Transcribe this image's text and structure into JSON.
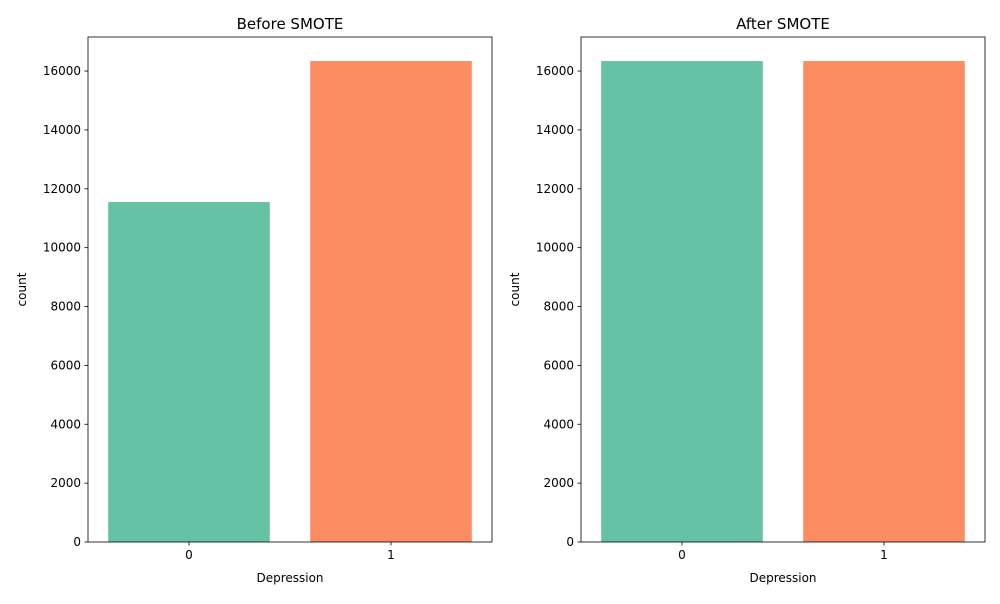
{
  "chart_data": [
    {
      "type": "bar",
      "title": "Before SMOTE",
      "xlabel": "Depression",
      "ylabel": "count",
      "categories": [
        "0",
        "1"
      ],
      "values": [
        11550,
        16340
      ],
      "colors": [
        "#66c2a5",
        "#fc8d62"
      ],
      "ylim": [
        0,
        17157
      ],
      "yticks": [
        0,
        2000,
        4000,
        6000,
        8000,
        10000,
        12000,
        14000,
        16000
      ],
      "grid": false,
      "legend": "none"
    },
    {
      "type": "bar",
      "title": "After SMOTE",
      "xlabel": "Depression",
      "ylabel": "count",
      "categories": [
        "0",
        "1"
      ],
      "values": [
        16340,
        16340
      ],
      "colors": [
        "#66c2a5",
        "#fc8d62"
      ],
      "ylim": [
        0,
        17157
      ],
      "yticks": [
        0,
        2000,
        4000,
        6000,
        8000,
        10000,
        12000,
        14000,
        16000
      ],
      "grid": false,
      "legend": "none"
    }
  ]
}
